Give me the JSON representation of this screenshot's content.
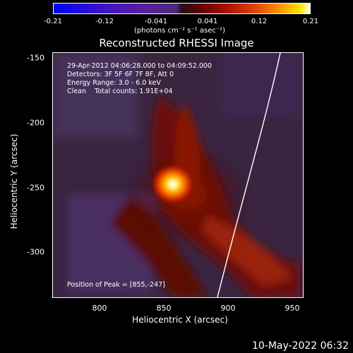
{
  "colorbar": {
    "ticks": [
      "-0.21",
      "-0.12",
      "-0.041",
      "0.041",
      "0.12",
      "0.21"
    ],
    "units": "(photons cm⁻² s⁻¹ asec⁻²)",
    "range": [
      -0.21,
      0.21
    ]
  },
  "title": "Reconstructed RHESSI Image",
  "info": {
    "time": "29-Apr-2012 04:06:28.000 to 04:09:52.000",
    "detectors": "Detectors: 3F 5F 6F 7F 8F, Att 0",
    "energy": "Energy Range: 3.0 - 6.0 keV",
    "clean": "Clean    Total counts: 1.91E+04"
  },
  "peak": "Position of Peak = [855,-247]",
  "axes": {
    "xlabel": "Heliocentric X (arcsec)",
    "ylabel": "Heliocentric Y (arcsec)",
    "xticks": [
      "800",
      "850",
      "900",
      "950"
    ],
    "yticks": [
      "-150",
      "-200",
      "-250",
      "-300"
    ],
    "xlim": [
      763,
      958
    ],
    "ylim": [
      -337,
      -145
    ]
  },
  "source_peak": [
    855,
    -247
  ],
  "footer": "10-May-2022 06:32"
}
